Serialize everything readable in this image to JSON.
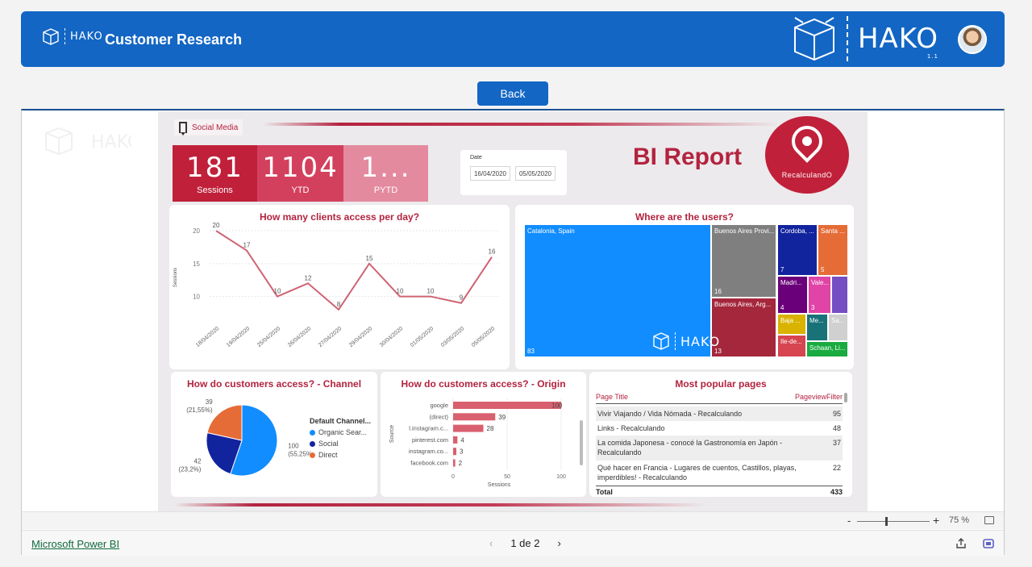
{
  "header": {
    "logo_text": "HAKO",
    "title": "Customer Research",
    "brand_text": "HAKO",
    "brand_subtext": "1.1"
  },
  "back_label": "Back",
  "report": {
    "bookmark_label": "Social Media",
    "kpis": [
      {
        "value": "181",
        "label": "Sessions",
        "color": "#c0203a"
      },
      {
        "value": "1104",
        "label": "YTD",
        "color": "#d3405e"
      },
      {
        "value": "1...",
        "label": "PYTD",
        "color": "#e48a9f"
      }
    ],
    "date": {
      "title": "Date",
      "from": "16/04/2020",
      "to": "05/05/2020"
    },
    "bi_title": "BI Report",
    "recalc_logo_text": "RecalculandO",
    "line_card": {
      "title": "How many clients access per day?"
    },
    "treemap_card": {
      "title": "Where are the users?",
      "tiles": [
        {
          "label": "Catalonia, Spain",
          "value": "83",
          "color": "#118dff"
        },
        {
          "label": "Buenos Aires Provi...",
          "value": "16",
          "color": "#7f7f7f"
        },
        {
          "label": "Buenos Aires, Arg...",
          "value": "13",
          "color": "#a4273c"
        },
        {
          "label": "Cordoba, ...",
          "value": "7",
          "color": "#12239e"
        },
        {
          "label": "Santa ...",
          "value": "5",
          "color": "#e66c37"
        },
        {
          "label": "Madri...",
          "value": "4",
          "color": "#6b007b"
        },
        {
          "label": "Vale...",
          "value": "3",
          "color": "#e044a7"
        },
        {
          "label": "",
          "value": "",
          "color": "#744ec2"
        },
        {
          "label": "Baja ...",
          "value": "",
          "color": "#d9b300"
        },
        {
          "label": "Me...",
          "value": "",
          "color": "#197278"
        },
        {
          "label": "Sa...",
          "value": "",
          "color": "#d0d0d0"
        },
        {
          "label": "Ile-de...",
          "value": "",
          "color": "#d64550"
        },
        {
          "label": "Schaan, Li...",
          "value": "",
          "color": "#1aab40"
        }
      ],
      "watermark_text": "HAKO"
    },
    "pie_card": {
      "title": "How do customers access? - Channel",
      "legend_title": "Default Channel..."
    },
    "bar_card": {
      "title": "How do customers access? - Origin",
      "ylabel": "Source",
      "xlabel": "Sessions"
    },
    "table_card": {
      "title": "Most popular pages",
      "col1": "Page Title",
      "col2": "PageviewFilter",
      "rows": [
        {
          "title": "Vivir Viajando / Vida Nómada - Recalculando",
          "views": "95"
        },
        {
          "title": "Links - Recalculando",
          "views": "48"
        },
        {
          "title": "La comida Japonesa - conocé la Gastronomía en Japón - Recalculando",
          "views": "37"
        },
        {
          "title": "Qué hacer en Francia - Lugares de cuentos, Castillos, playas, imperdibles! - Recalculando",
          "views": "22"
        }
      ],
      "total_label": "Total",
      "total_value": "433"
    }
  },
  "chart_data": [
    {
      "type": "line",
      "title": "How many clients access per day?",
      "ylabel": "Sessions",
      "x": [
        "18/04/2020",
        "19/04/2020",
        "25/04/2020",
        "26/04/2020",
        "27/04/2020",
        "29/04/2020",
        "30/04/2020",
        "01/05/2020",
        "03/05/2020",
        "05/05/2020"
      ],
      "values": [
        20,
        17,
        10,
        12,
        8,
        15,
        10,
        10,
        9,
        16
      ],
      "yticks": [
        10,
        15,
        20
      ],
      "ylim": [
        7,
        21
      ],
      "color": "#cf6373"
    },
    {
      "type": "pie",
      "title": "How do customers access? - Channel",
      "legend_title": "Default Channel...",
      "legend_position": "right",
      "slices": [
        {
          "name": "Organic Sear...",
          "value": 100,
          "label": "100",
          "pct": "(55,25%)",
          "color": "#118dff"
        },
        {
          "name": "Social",
          "value": 42,
          "label": "42",
          "pct": "(23,2%)",
          "color": "#12239e"
        },
        {
          "name": "Direct",
          "value": 39,
          "label": "39",
          "pct": "(21,55%)",
          "color": "#e66c37"
        }
      ]
    },
    {
      "type": "bar",
      "orientation": "horizontal",
      "title": "How do customers access? - Origin",
      "ylabel": "Source",
      "xlabel": "Sessions",
      "categories": [
        "google",
        "(direct)",
        "l.instagram.c...",
        "pinterest.com",
        "instagram.co...",
        "facebook.com"
      ],
      "values": [
        100,
        39,
        28,
        4,
        3,
        2
      ],
      "xticks": [
        0,
        50,
        100
      ],
      "xlim": [
        0,
        100
      ],
      "color": "#d9606f"
    }
  ],
  "zoom": {
    "minus": "-",
    "plus": "+",
    "level": "75 %",
    "fraction": 0.39
  },
  "footer": {
    "link": "Microsoft Power BI",
    "page_indicator": "1 de 2",
    "prev": "‹",
    "next": "›"
  }
}
